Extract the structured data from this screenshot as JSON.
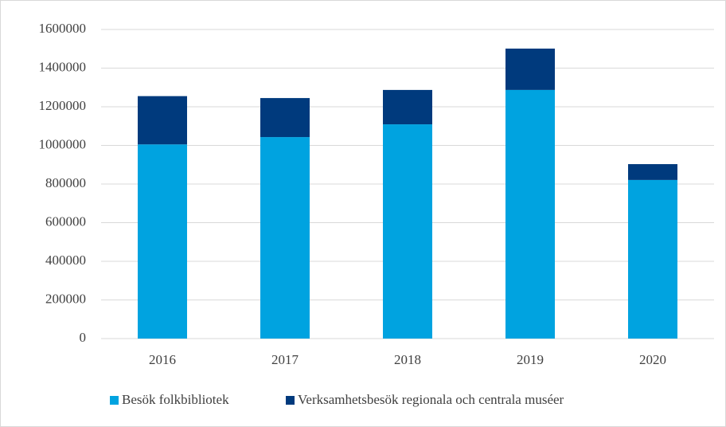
{
  "chart_data": {
    "type": "stacked_bar",
    "categories": [
      "2016",
      "2017",
      "2018",
      "2019",
      "2020"
    ],
    "series": [
      {
        "name": "Besök folkbibliotek",
        "color": "#00a3e0",
        "values": [
          1005000,
          1043000,
          1109000,
          1287000,
          821000
        ]
      },
      {
        "name": "Verksamhetsbesök regionala och centrala muséer",
        "color": "#003a7d",
        "values": [
          250000,
          202000,
          178000,
          214000,
          82000
        ]
      }
    ],
    "ylim": [
      0,
      1600000
    ],
    "yticks": [
      0,
      200000,
      400000,
      600000,
      800000,
      1000000,
      1200000,
      1400000,
      1600000
    ],
    "grid": true,
    "legend": "bottom"
  }
}
